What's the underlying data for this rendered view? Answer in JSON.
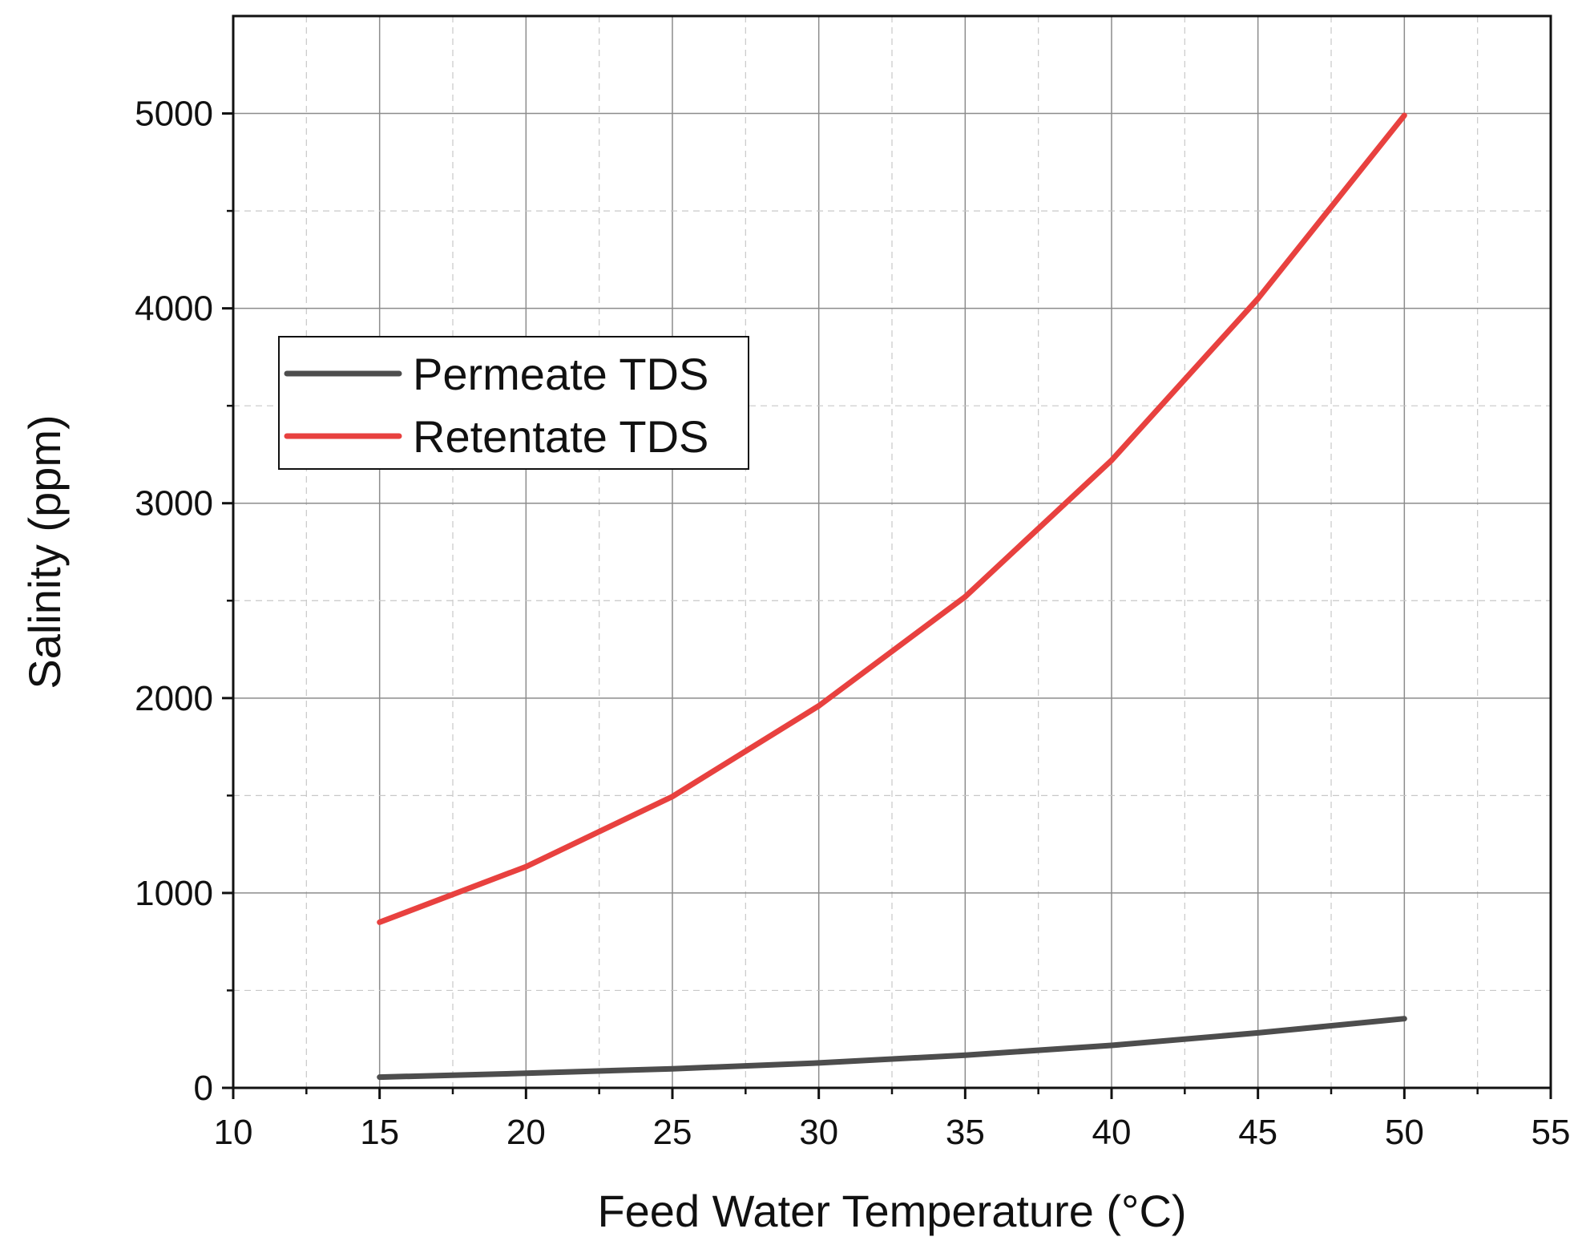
{
  "chart_data": {
    "type": "line",
    "xlabel": "Feed Water Temperature (°C)",
    "ylabel": "Salinity (ppm)",
    "xlim": [
      10,
      55
    ],
    "ylim": [
      0,
      5500
    ],
    "xticks": [
      10,
      15,
      20,
      25,
      30,
      35,
      40,
      45,
      50,
      55
    ],
    "xtick_labels": [
      "10",
      "15",
      "20",
      "25",
      "30",
      "35",
      "40",
      "45",
      "50",
      "55"
    ],
    "yticks": [
      0,
      1000,
      2000,
      3000,
      4000,
      5000
    ],
    "ytick_labels": [
      "0",
      "1000",
      "2000",
      "3000",
      "4000",
      "5000"
    ],
    "grid": true,
    "legend_position": "upper-left",
    "x": [
      15,
      20,
      25,
      30,
      35,
      40,
      45,
      50
    ],
    "series": [
      {
        "name": "Permeate TDS",
        "color": "#4d4d4d",
        "values": [
          55,
          75,
          98,
          128,
          168,
          218,
          282,
          355
        ]
      },
      {
        "name": "Retentate TDS",
        "color": "#e8413f",
        "values": [
          850,
          1135,
          1495,
          1960,
          2520,
          3220,
          4050,
          4990
        ]
      }
    ]
  }
}
